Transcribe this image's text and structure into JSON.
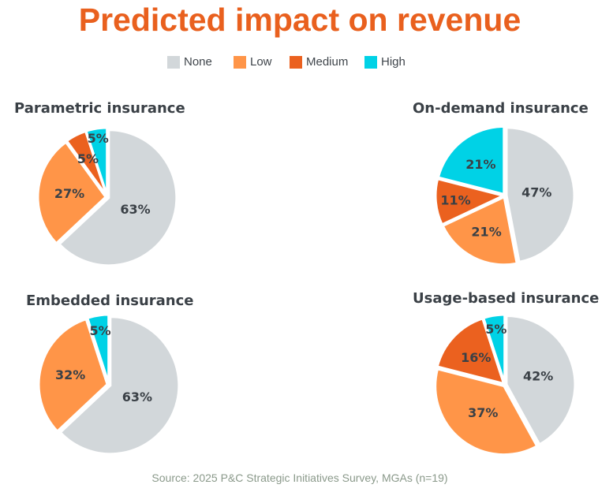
{
  "title": "Predicted impact on revenue",
  "legend": [
    {
      "label": "None",
      "color": "#D2D7DA"
    },
    {
      "label": "Low",
      "color": "#FF9548"
    },
    {
      "label": "Medium",
      "color": "#EB611F"
    },
    {
      "label": "High",
      "color": "#00D2E6"
    }
  ],
  "source": "Source: 2025 P&C Strategic Initiatives Survey, MGAs (n=19)",
  "chart_data": [
    {
      "type": "pie",
      "title": "Parametric insurance",
      "categories": [
        "None",
        "Low",
        "Medium",
        "High"
      ],
      "values": [
        63,
        27,
        5,
        5
      ],
      "labels": [
        "63%",
        "27%",
        "5%",
        "5%"
      ]
    },
    {
      "type": "pie",
      "title": "On-demand insurance",
      "categories": [
        "None",
        "Low",
        "Medium",
        "High"
      ],
      "values": [
        47,
        21,
        11,
        21
      ],
      "labels": [
        "47%",
        "21%",
        "11%",
        "21%"
      ]
    },
    {
      "type": "pie",
      "title": "Embedded insurance",
      "categories": [
        "None",
        "Low",
        "High"
      ],
      "values": [
        63,
        32,
        5
      ],
      "labels": [
        "63%",
        "32%",
        "5%"
      ]
    },
    {
      "type": "pie",
      "title": "Usage-based insurance",
      "categories": [
        "None",
        "Low",
        "Medium",
        "High"
      ],
      "values": [
        42,
        37,
        16,
        5
      ],
      "labels": [
        "42%",
        "37%",
        "16%",
        "5%"
      ]
    }
  ]
}
